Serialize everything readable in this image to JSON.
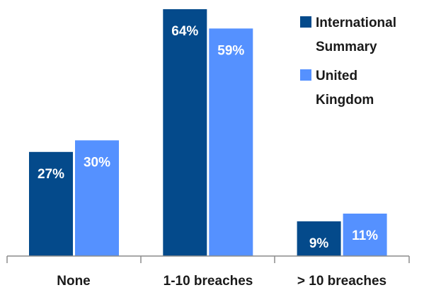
{
  "chart_data": {
    "type": "bar",
    "title": "",
    "xlabel": "",
    "ylabel": "",
    "categories": [
      "None",
      "1-10 breaches",
      "> 10 breaches"
    ],
    "series": [
      {
        "name": "International Summary",
        "values": [
          27,
          64,
          9
        ],
        "labels": [
          "27%",
          "64%",
          "9%"
        ],
        "color": "#044a8b"
      },
      {
        "name": "United Kingdom",
        "values": [
          30,
          59,
          11
        ],
        "labels": [
          "30%",
          "59%",
          "11%"
        ],
        "color": "#5591ff"
      }
    ],
    "legend": {
      "placement": "top-right",
      "items": [
        {
          "lines": [
            "International",
            "Summary"
          ]
        },
        {
          "lines": [
            "United",
            "Kingdom"
          ]
        }
      ]
    },
    "ylim": [
      0,
      64
    ],
    "grid": false
  }
}
